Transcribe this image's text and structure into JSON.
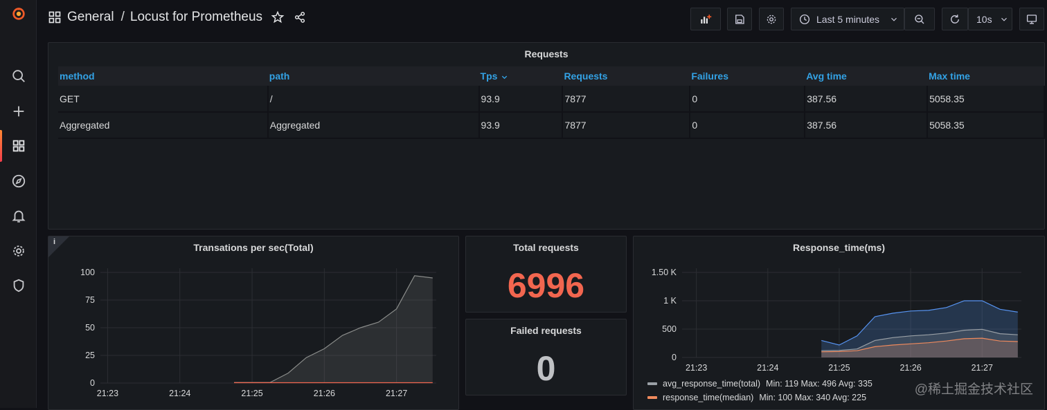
{
  "breadcrumb": {
    "folder": "General",
    "separator": "/",
    "dashboard": "Locust for Prometheus"
  },
  "toolbar": {
    "time_range": "Last 5 minutes",
    "refresh_interval": "10s"
  },
  "watermark": "@稀土掘金技术社区",
  "requests_table": {
    "title": "Requests",
    "columns": [
      "method",
      "path",
      "Tps",
      "Requests",
      "Failures",
      "Avg time",
      "Max time"
    ],
    "rows": [
      [
        "GET",
        "/",
        "93.9",
        "7877",
        "0",
        "387.56",
        "5058.35"
      ],
      [
        "Aggregated",
        "Aggregated",
        "93.9",
        "7877",
        "0",
        "387.56",
        "5058.35"
      ]
    ]
  },
  "tps_panel": {
    "title": "Transations per sec(Total)",
    "info": "i"
  },
  "total_requests": {
    "title": "Total requests",
    "value": "6996",
    "color": "#f2664f"
  },
  "failed_requests": {
    "title": "Failed requests",
    "value": "0",
    "color": "#bfc1c4"
  },
  "response_panel": {
    "title": "Response_time(ms)",
    "legend": [
      {
        "name": "avg_response_time(total)",
        "stats": "Min: 119  Max: 496  Avg: 335",
        "color": "#9aa0a6"
      },
      {
        "name": "response_time(median)",
        "stats": "Min: 100  Max: 340  Avg: 225",
        "color": "#f08a5d"
      }
    ]
  },
  "chart_data": [
    {
      "type": "area",
      "title": "Transations per sec(Total)",
      "xlabel": "",
      "ylabel": "",
      "x_ticks": [
        "21:23",
        "21:24",
        "21:25",
        "21:26",
        "21:27"
      ],
      "y_ticks": [
        100,
        75,
        50,
        25,
        0
      ],
      "ylim": [
        0,
        100
      ],
      "xlim": [
        -0.1,
        4.55
      ],
      "grid": true,
      "series": [
        {
          "color": "#8a8c8a",
          "x": [
            1.75,
            2.0,
            2.25,
            2.5,
            2.75,
            3.0,
            3.25,
            3.5,
            3.75,
            4.0,
            4.25,
            4.5
          ],
          "y": [
            0.5,
            0.5,
            0.5,
            9,
            23,
            31,
            43,
            50,
            55,
            67,
            97,
            95
          ]
        },
        {
          "color": "#f2664f",
          "x": [
            1.75,
            4.5
          ],
          "y": [
            0.3,
            0.3
          ]
        }
      ]
    },
    {
      "type": "area",
      "title": "Response_time(ms)",
      "x_ticks": [
        "21:23",
        "21:24",
        "21:25",
        "21:26",
        "21:27"
      ],
      "y_ticks": [
        "1.50 K",
        "1 K",
        "500",
        "0"
      ],
      "y_tick_values": [
        1500,
        1000,
        500,
        0
      ],
      "ylim": [
        0,
        1500
      ],
      "xlim": [
        -0.2,
        4.55
      ],
      "grid": true,
      "series": [
        {
          "color": "#5794f2",
          "x": [
            1.75,
            2.0,
            2.25,
            2.5,
            2.75,
            3.0,
            3.25,
            3.5,
            3.75,
            4.0,
            4.25,
            4.5
          ],
          "y": [
            300,
            220,
            380,
            720,
            780,
            820,
            830,
            880,
            1000,
            1000,
            850,
            800
          ]
        },
        {
          "name": "avg_response_time(total)",
          "color": "#9aa0a6",
          "x": [
            1.75,
            2.0,
            2.25,
            2.5,
            2.75,
            3.0,
            3.25,
            3.5,
            3.75,
            4.0,
            4.25,
            4.5
          ],
          "y": [
            119,
            125,
            150,
            300,
            350,
            380,
            400,
            430,
            480,
            496,
            420,
            400
          ]
        },
        {
          "name": "response_time(median)",
          "color": "#f08a5d",
          "x": [
            1.75,
            2.0,
            2.25,
            2.5,
            2.75,
            3.0,
            3.25,
            3.5,
            3.75,
            4.0,
            4.25,
            4.5
          ],
          "y": [
            100,
            105,
            120,
            190,
            220,
            240,
            260,
            290,
            330,
            340,
            290,
            280
          ]
        }
      ]
    }
  ]
}
